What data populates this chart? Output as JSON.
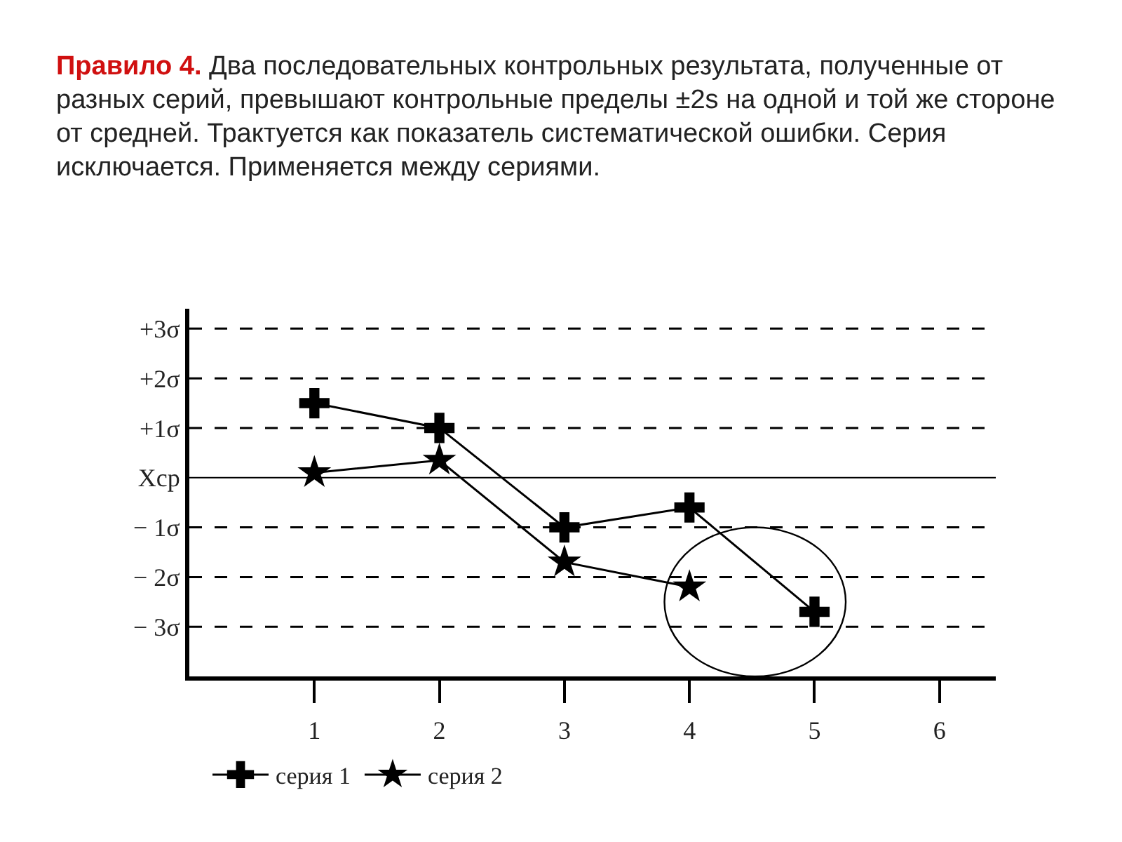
{
  "chart_data": {
    "type": "line",
    "title": "Правило 4.",
    "subtitle": "Два последовательных контрольных результата, полученные от разных серий, превышают контрольные пределы ±2s на одной и той же стороне от средней. Трактуется как показатель систематической ошибки. Серия исключается. Применяется между сериями.",
    "x": [
      1,
      2,
      3,
      4,
      5
    ],
    "series": [
      {
        "name": "серия 1",
        "color": "#000000",
        "marker": "cross",
        "values": [
          1.5,
          1.0,
          -1.0,
          -0.6,
          -2.7
        ]
      },
      {
        "name": "серия 2",
        "color": "#000000",
        "marker": "star",
        "values": [
          0.1,
          0.35,
          -1.7,
          -2.2,
          null
        ]
      }
    ],
    "xlim": [
      0,
      6.45
    ],
    "xticks": [
      1,
      2,
      3,
      4,
      5,
      6
    ],
    "ylim": [
      -4,
      3.4
    ],
    "yticks": [
      {
        "value": 3,
        "label": "+3σ"
      },
      {
        "value": 2,
        "label": "+2σ"
      },
      {
        "value": 1,
        "label": "+1σ"
      },
      {
        "value": 0,
        "label": "Xср"
      },
      {
        "value": -1,
        "label": "− 1σ"
      },
      {
        "value": -2,
        "label": "− 2σ"
      },
      {
        "value": -3,
        "label": "− 3σ"
      }
    ],
    "ref_lines": [
      {
        "axis": "y",
        "value": 3,
        "line_style": "dashed",
        "color": "#000000"
      },
      {
        "axis": "y",
        "value": 2,
        "line_style": "dashed",
        "color": "#000000"
      },
      {
        "axis": "y",
        "value": 1,
        "line_style": "dashed",
        "color": "#000000"
      },
      {
        "axis": "y",
        "value": 0,
        "line_style": "solid",
        "color": "#000000"
      },
      {
        "axis": "y",
        "value": -1,
        "line_style": "dashed",
        "color": "#000000"
      },
      {
        "axis": "y",
        "value": -2,
        "line_style": "dashed",
        "color": "#000000"
      },
      {
        "axis": "y",
        "value": -3,
        "line_style": "dashed",
        "color": "#000000"
      }
    ],
    "grid": false,
    "legend": "bottom",
    "line_style": "solid"
  }
}
